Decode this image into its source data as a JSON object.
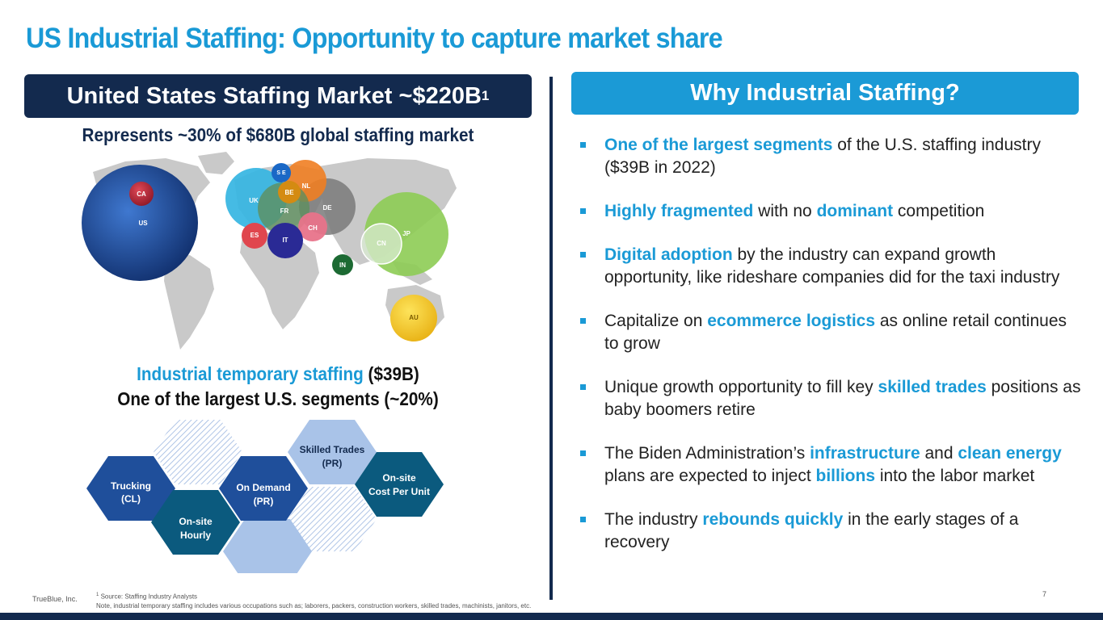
{
  "title": "US Industrial Staffing: Opportunity to capture market share",
  "left_header": {
    "text": "United States Staffing Market ~$220B",
    "sup": "1"
  },
  "right_header": "Why Industrial Staffing?",
  "subtitle": "Represents ~30% of $680B global staffing market",
  "map_bubbles": [
    {
      "label": "CA",
      "color": "#c0283a"
    },
    {
      "label": "US",
      "color": "#1f52a8"
    },
    {
      "label": "UK",
      "color": "#35b5e2"
    },
    {
      "label": "S E",
      "color": "#1a68c6"
    },
    {
      "label": "NL",
      "color": "#f07e22"
    },
    {
      "label": "BE",
      "color": "#d48b12"
    },
    {
      "label": "DE",
      "color": "#808080"
    },
    {
      "label": "FR",
      "color": "#5e8f5e"
    },
    {
      "label": "CH",
      "color": "#e8738a"
    },
    {
      "label": "ES",
      "color": "#e0464e"
    },
    {
      "label": "IT",
      "color": "#2a2a95"
    },
    {
      "label": "JP",
      "color": "#8dcc54"
    },
    {
      "label": "CN",
      "color": "#d9ebd2"
    },
    {
      "label": "IN",
      "color": "#1c6a33"
    },
    {
      "label": "AU",
      "color": "#f5c825"
    }
  ],
  "segment_caption": {
    "line1_blue": "Industrial temporary staffing",
    "line1_dark": " ($39B)",
    "line2": "One of the largest U.S. segments (~20%)"
  },
  "hexagons": [
    {
      "line1": "Trucking",
      "line2": "(CL)",
      "color": "#1f4f9b"
    },
    {
      "line1": "On-site",
      "line2": "Hourly",
      "color": "#0b5a7e"
    },
    {
      "line1": "On Demand",
      "line2": "(PR)",
      "color": "#1f4f9b"
    },
    {
      "line1": "Skilled Trades",
      "line2": "(PR)",
      "color": "#a9c3e8"
    },
    {
      "line1": "On-site",
      "line2": "Cost Per Unit",
      "color": "#0b5a7e"
    }
  ],
  "bullets": [
    [
      {
        "t": "One of the largest segments",
        "hl": true
      },
      {
        "t": " of the U.S. staffing industry ($39B in 2022)",
        "hl": false
      }
    ],
    [
      {
        "t": "Highly fragmented",
        "hl": true
      },
      {
        "t": " with no ",
        "hl": false
      },
      {
        "t": "dominant",
        "hl": true
      },
      {
        "t": " competition",
        "hl": false
      }
    ],
    [
      {
        "t": "Digital adoption",
        "hl": true
      },
      {
        "t": " by the industry can expand growth opportunity, like rideshare companies did for the taxi industry",
        "hl": false
      }
    ],
    [
      {
        "t": "Capitalize on ",
        "hl": false
      },
      {
        "t": "ecommerce logistics",
        "hl": true
      },
      {
        "t": " as online retail continues to grow",
        "hl": false
      }
    ],
    [
      {
        "t": "Unique growth opportunity to fill key ",
        "hl": false
      },
      {
        "t": "skilled trades",
        "hl": true
      },
      {
        "t": " positions as baby boomers retire",
        "hl": false
      }
    ],
    [
      {
        "t": "The Biden Administration’s ",
        "hl": false
      },
      {
        "t": "infrastructure",
        "hl": true
      },
      {
        "t": " and ",
        "hl": false
      },
      {
        "t": "clean energy",
        "hl": true
      },
      {
        "t": " plans are expected to inject ",
        "hl": false
      },
      {
        "t": "billions",
        "hl": true
      },
      {
        "t": " into the labor market",
        "hl": false
      }
    ],
    [
      {
        "t": "The industry ",
        "hl": false
      },
      {
        "t": "rebounds quickly",
        "hl": true
      },
      {
        "t": " in the early stages of a recovery",
        "hl": false
      }
    ]
  ],
  "footer": {
    "company": "TrueBlue, Inc.",
    "footnote_sup": "1",
    "footnote_line1": " Source: Staffing Industry Analysts",
    "footnote_line2": "Note, industrial temporary staffing includes various occupations such as; laborers, packers, construction workers, skilled trades, machinists, janitors, etc.",
    "page": "7"
  },
  "colors": {
    "accent": "#1a9ad6",
    "navy": "#132a4e"
  }
}
